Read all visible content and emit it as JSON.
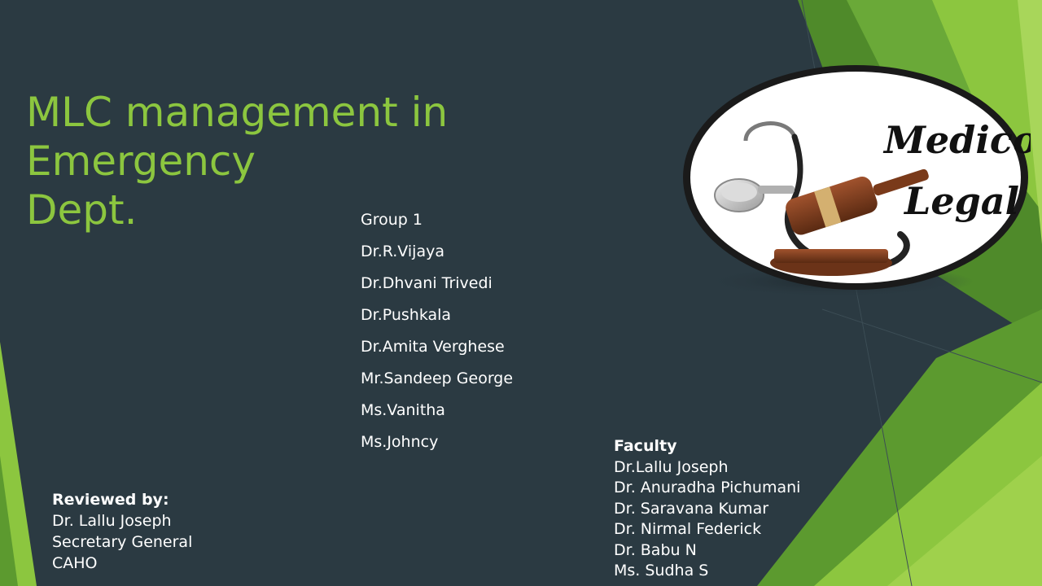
{
  "slide": {
    "title_line1": "MLC management in Emergency",
    "title_line2": "Dept.",
    "group_members": [
      "Group 1",
      "Dr.R.Vijaya",
      "Dr.Dhvani Trivedi",
      "Dr.Pushkala",
      "Dr.Amita Verghese",
      "Mr.Sandeep George",
      "Ms.Vanitha",
      "Ms.Johncy"
    ],
    "faculty": {
      "heading": "Faculty",
      "members": [
        "Dr.Lallu Joseph",
        "Dr. Anuradha Pichumani",
        "Dr. Saravana Kumar",
        "Dr. Nirmal Federick",
        "Dr. Babu N",
        "Ms. Sudha S"
      ]
    },
    "reviewed": {
      "heading": "Reviewed by:",
      "lines": [
        "Dr. Lallu Joseph",
        "Secretary General",
        "CAHO"
      ]
    },
    "logo": {
      "line1": "Medico",
      "line2": "Legal"
    }
  },
  "colors": {
    "background": "#2b3a42",
    "accent_green": "#8cc63f",
    "dark_green": "#3f7a1f",
    "text": "#ffffff"
  }
}
